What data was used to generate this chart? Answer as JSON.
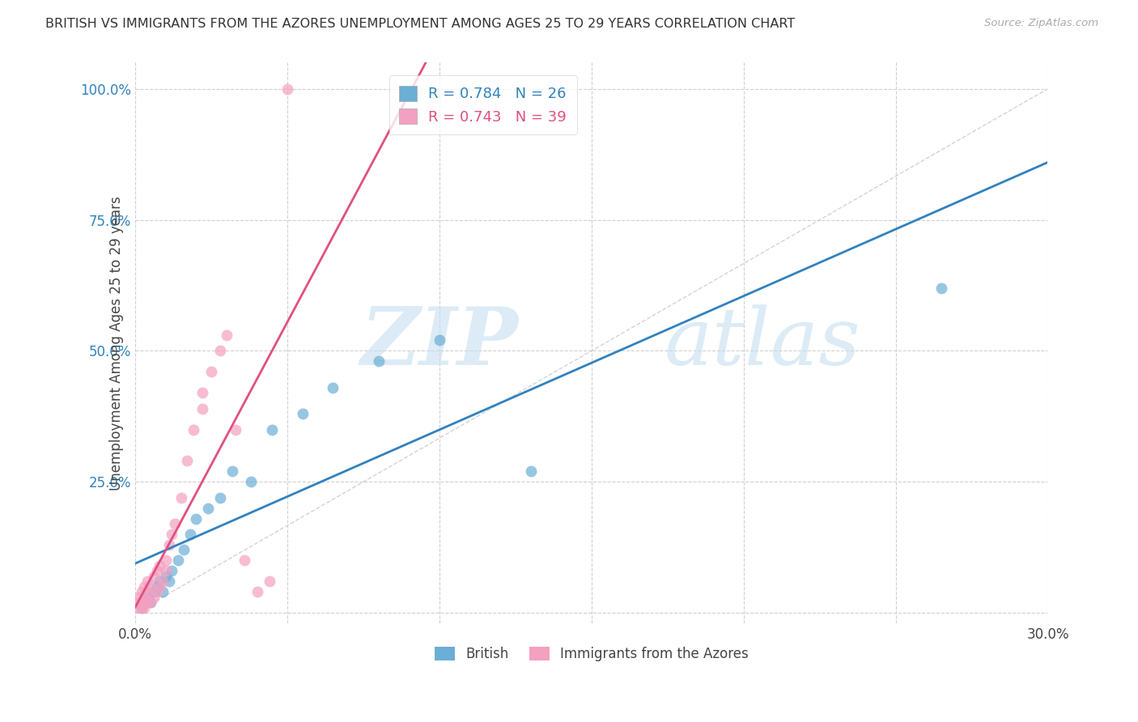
{
  "title": "BRITISH VS IMMIGRANTS FROM THE AZORES UNEMPLOYMENT AMONG AGES 25 TO 29 YEARS CORRELATION CHART",
  "source": "Source: ZipAtlas.com",
  "ylabel": "Unemployment Among Ages 25 to 29 years",
  "xlim": [
    0.0,
    0.3
  ],
  "ylim": [
    -0.02,
    1.05
  ],
  "x_ticks": [
    0.0,
    0.05,
    0.1,
    0.15,
    0.2,
    0.25,
    0.3
  ],
  "x_tick_labels": [
    "0.0%",
    "",
    "",
    "",
    "",
    "",
    "30.0%"
  ],
  "y_ticks": [
    0.0,
    0.25,
    0.5,
    0.75,
    1.0
  ],
  "y_tick_labels": [
    "",
    "25.0%",
    "50.0%",
    "75.0%",
    "100.0%"
  ],
  "british_color": "#6baed6",
  "azores_color": "#f4a0c0",
  "british_line_color": "#3182bd",
  "azores_line_color": "#e05080",
  "watermark_zip": "ZIP",
  "watermark_atlas": "atlas",
  "legend_british_R": "0.784",
  "legend_british_N": "26",
  "legend_azores_R": "0.743",
  "legend_azores_N": "39",
  "british_scatter_x": [
    0.002,
    0.003,
    0.004,
    0.005,
    0.006,
    0.007,
    0.008,
    0.009,
    0.01,
    0.011,
    0.012,
    0.014,
    0.016,
    0.018,
    0.02,
    0.024,
    0.028,
    0.032,
    0.038,
    0.045,
    0.055,
    0.065,
    0.08,
    0.1,
    0.13,
    0.265
  ],
  "british_scatter_y": [
    0.01,
    0.02,
    0.03,
    0.02,
    0.04,
    0.05,
    0.06,
    0.04,
    0.07,
    0.06,
    0.08,
    0.1,
    0.12,
    0.15,
    0.18,
    0.2,
    0.22,
    0.27,
    0.25,
    0.35,
    0.38,
    0.43,
    0.48,
    0.52,
    0.27,
    0.62
  ],
  "azores_scatter_x": [
    0.001,
    0.001,
    0.001,
    0.002,
    0.002,
    0.002,
    0.003,
    0.003,
    0.003,
    0.004,
    0.004,
    0.004,
    0.005,
    0.005,
    0.006,
    0.006,
    0.007,
    0.007,
    0.008,
    0.008,
    0.009,
    0.01,
    0.01,
    0.011,
    0.012,
    0.013,
    0.015,
    0.017,
    0.019,
    0.022,
    0.025,
    0.028,
    0.03,
    0.033,
    0.036,
    0.04,
    0.044,
    0.05,
    0.022
  ],
  "azores_scatter_y": [
    0.01,
    0.02,
    0.03,
    0.01,
    0.02,
    0.04,
    0.01,
    0.03,
    0.05,
    0.02,
    0.04,
    0.06,
    0.02,
    0.05,
    0.03,
    0.07,
    0.04,
    0.08,
    0.05,
    0.09,
    0.06,
    0.08,
    0.1,
    0.13,
    0.15,
    0.17,
    0.22,
    0.29,
    0.35,
    0.39,
    0.46,
    0.5,
    0.53,
    0.35,
    0.1,
    0.04,
    0.06,
    1.0,
    0.42
  ],
  "grid_color": "#d0d0d0",
  "background_color": "#ffffff"
}
